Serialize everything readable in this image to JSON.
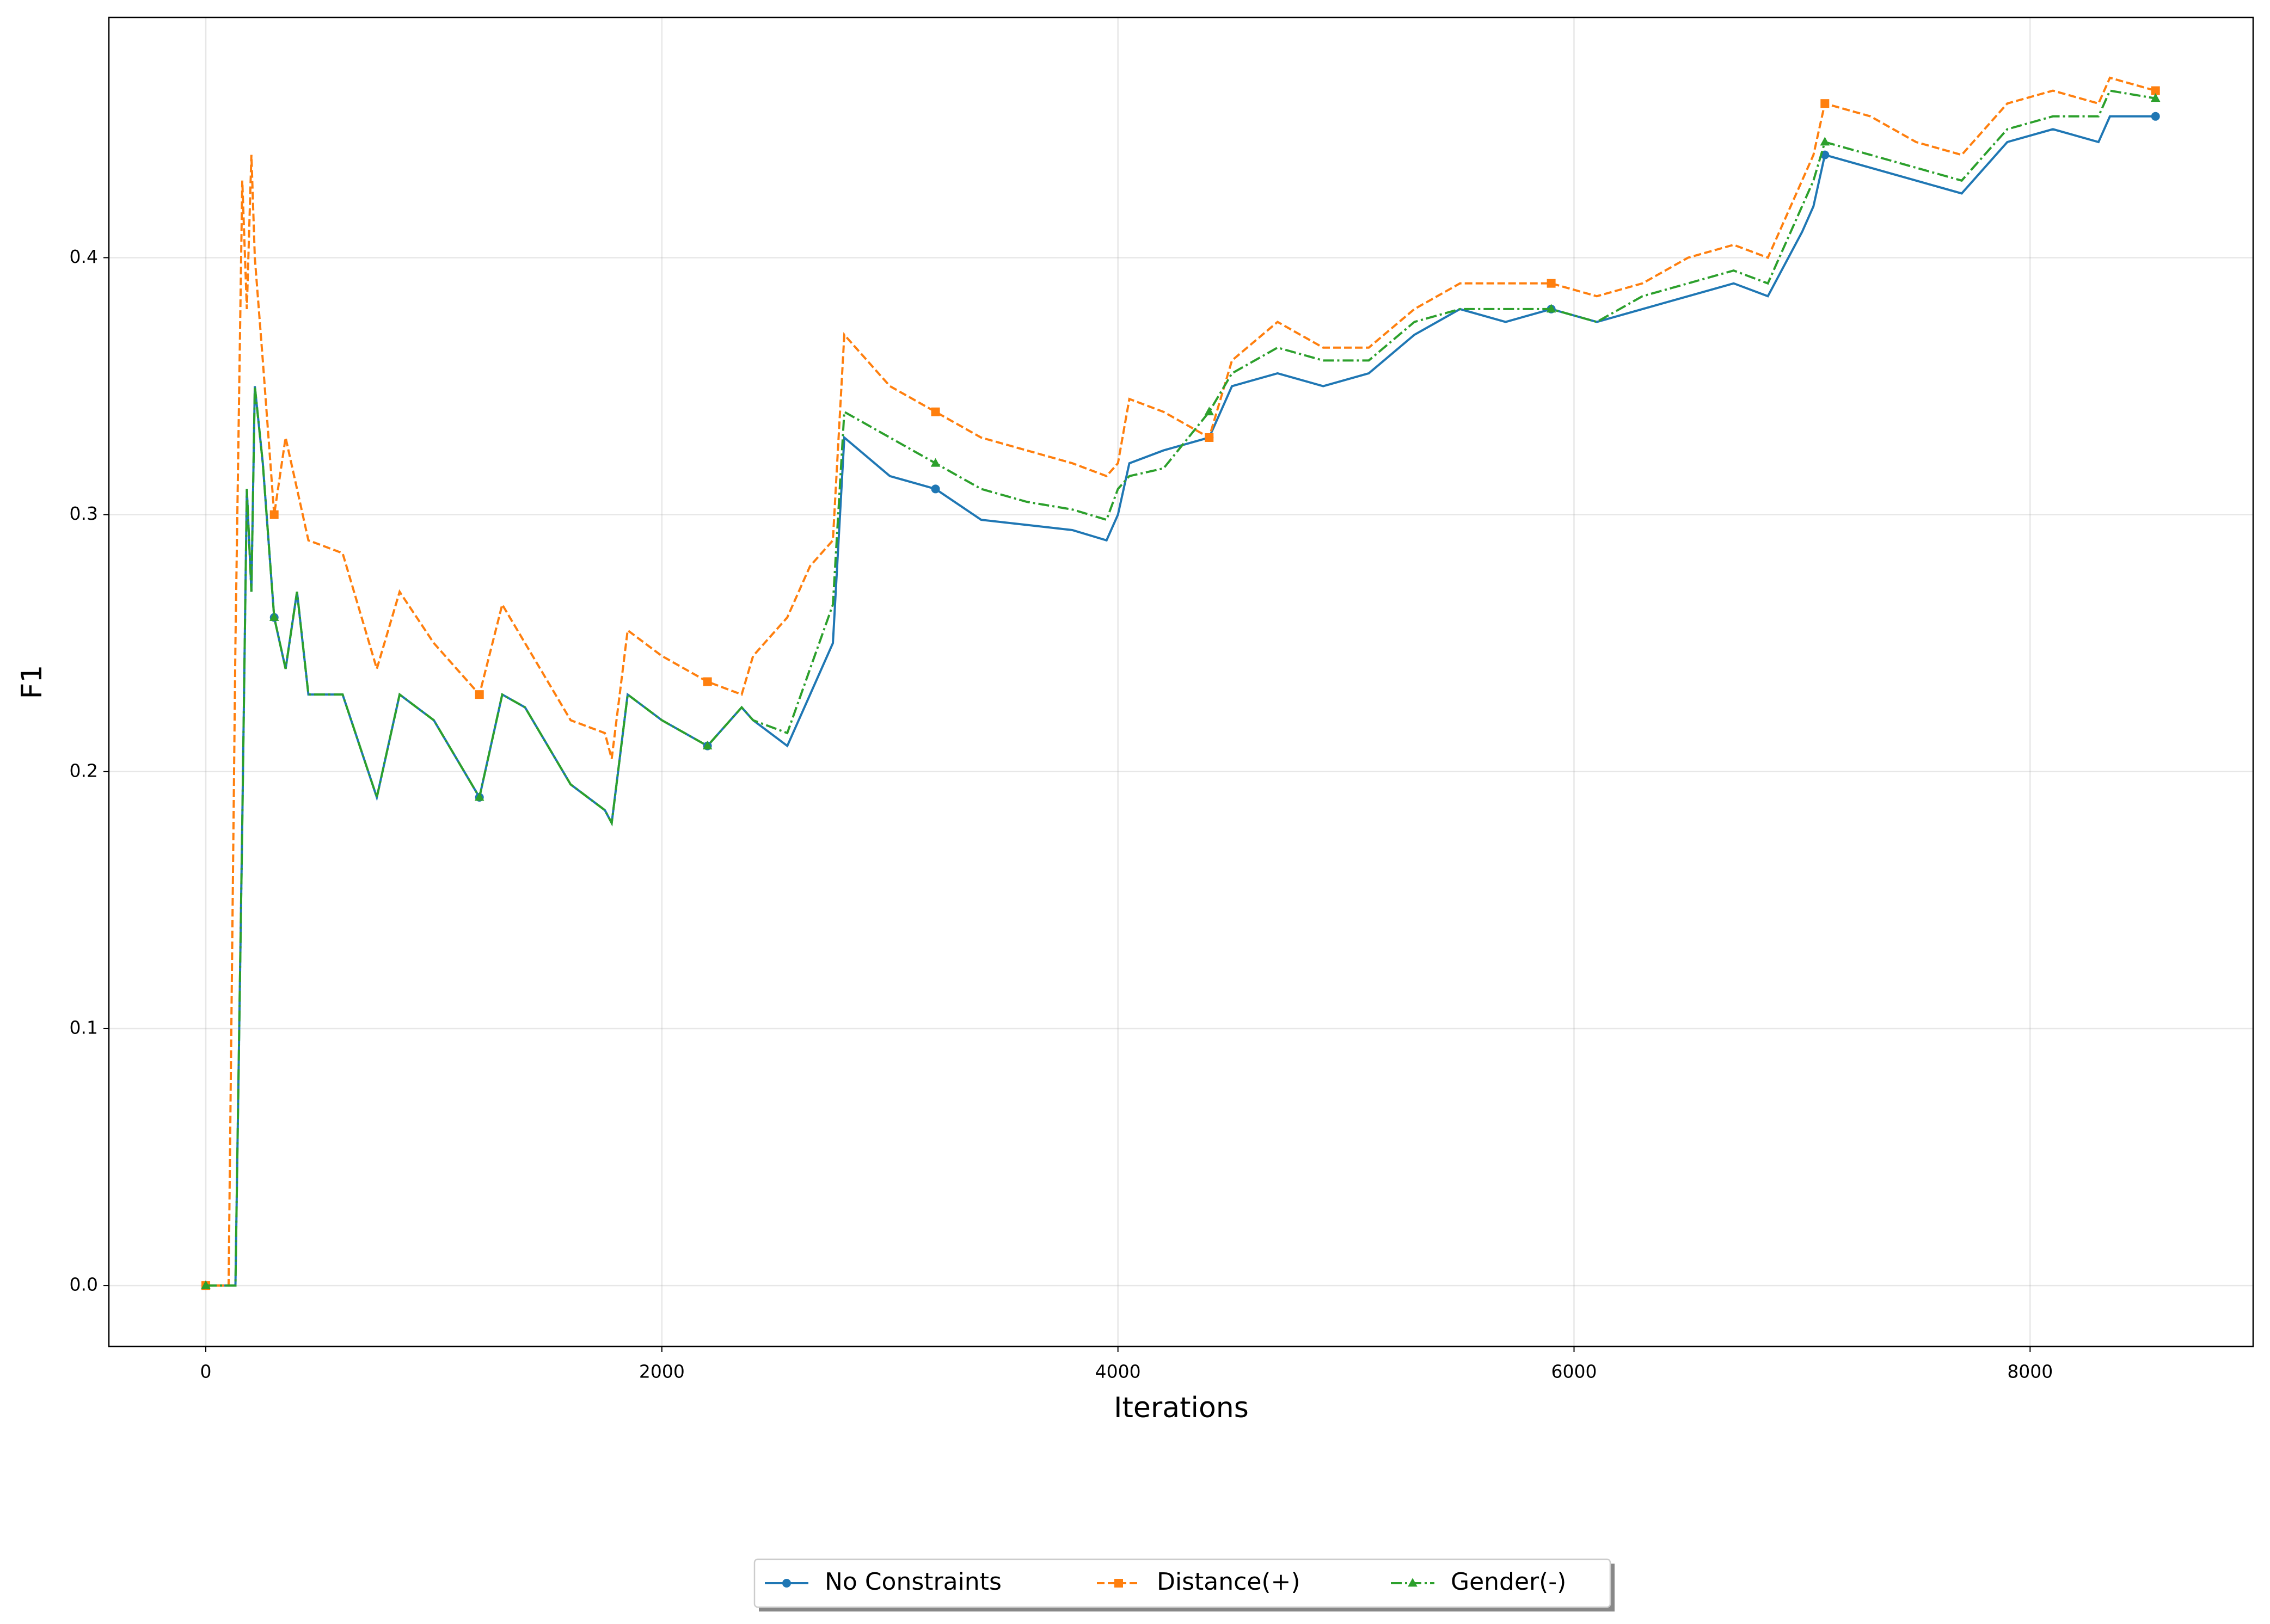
{
  "chart_data": {
    "type": "line",
    "xlabel": "Iterations",
    "ylabel": "F1",
    "x": [
      0,
      100,
      130,
      160,
      180,
      200,
      215,
      250,
      300,
      350,
      400,
      450,
      600,
      750,
      850,
      1000,
      1200,
      1300,
      1400,
      1600,
      1750,
      1780,
      1850,
      2000,
      2200,
      2350,
      2400,
      2550,
      2650,
      2750,
      2800,
      3000,
      3200,
      3400,
      3600,
      3800,
      3950,
      4000,
      4050,
      4200,
      4400,
      4500,
      4700,
      4900,
      5100,
      5300,
      5500,
      5700,
      5900,
      6100,
      6300,
      6500,
      6700,
      6850,
      7000,
      7050,
      7100,
      7300,
      7500,
      7700,
      7900,
      8100,
      8300,
      8350,
      8550
    ],
    "series": [
      {
        "name": "No Constraints",
        "color": "#1f77b4",
        "marker": "circle",
        "dash": "solid",
        "values": [
          0,
          0,
          0,
          0.18,
          0.31,
          0.27,
          0.35,
          0.32,
          0.26,
          0.24,
          0.27,
          0.23,
          0.23,
          0.19,
          0.23,
          0.22,
          0.19,
          0.23,
          0.225,
          0.195,
          0.185,
          0.18,
          0.23,
          0.22,
          0.21,
          0.225,
          0.22,
          0.21,
          0.23,
          0.25,
          0.33,
          0.315,
          0.31,
          0.298,
          0.296,
          0.294,
          0.29,
          0.3,
          0.32,
          0.325,
          0.33,
          0.35,
          0.355,
          0.35,
          0.355,
          0.37,
          0.38,
          0.375,
          0.38,
          0.375,
          0.38,
          0.385,
          0.39,
          0.385,
          0.41,
          0.42,
          0.44,
          0.435,
          0.43,
          0.425,
          0.445,
          0.45,
          0.445,
          0.455,
          0.455
        ]
      },
      {
        "name": "Distance(+)",
        "color": "#ff7f0e",
        "marker": "square",
        "dash": "dashed",
        "values": [
          0,
          0,
          0.25,
          0.43,
          0.38,
          0.44,
          0.4,
          0.36,
          0.3,
          0.33,
          0.31,
          0.29,
          0.285,
          0.24,
          0.27,
          0.25,
          0.23,
          0.265,
          0.25,
          0.22,
          0.215,
          0.205,
          0.255,
          0.245,
          0.235,
          0.23,
          0.245,
          0.26,
          0.28,
          0.29,
          0.37,
          0.35,
          0.34,
          0.33,
          0.325,
          0.32,
          0.315,
          0.32,
          0.345,
          0.34,
          0.33,
          0.36,
          0.375,
          0.365,
          0.365,
          0.38,
          0.39,
          0.39,
          0.39,
          0.385,
          0.39,
          0.4,
          0.405,
          0.4,
          0.43,
          0.44,
          0.46,
          0.455,
          0.445,
          0.44,
          0.46,
          0.465,
          0.46,
          0.47,
          0.465
        ]
      },
      {
        "name": "Gender(-)",
        "color": "#2ca02c",
        "marker": "triangle",
        "dash": "dashdot",
        "values": [
          0,
          0,
          0,
          0.18,
          0.31,
          0.27,
          0.35,
          0.32,
          0.26,
          0.24,
          0.27,
          0.23,
          0.23,
          0.19,
          0.23,
          0.22,
          0.19,
          0.23,
          0.225,
          0.195,
          0.185,
          0.18,
          0.23,
          0.22,
          0.21,
          0.225,
          0.22,
          0.215,
          0.24,
          0.265,
          0.34,
          0.33,
          0.32,
          0.31,
          0.305,
          0.302,
          0.298,
          0.31,
          0.315,
          0.318,
          0.34,
          0.355,
          0.365,
          0.36,
          0.36,
          0.375,
          0.38,
          0.38,
          0.38,
          0.375,
          0.385,
          0.39,
          0.395,
          0.39,
          0.42,
          0.43,
          0.445,
          0.44,
          0.435,
          0.43,
          0.45,
          0.455,
          0.455,
          0.465,
          0.462
        ]
      }
    ],
    "xlim": [
      -425,
      8978
    ],
    "ylim": [
      -0.0237,
      0.4935
    ],
    "xticks": [
      0,
      2000,
      4000,
      6000,
      8000
    ],
    "yticks": [
      {
        "value": 0,
        "label": "0.0"
      },
      0.1,
      0.2,
      0.3,
      0.4
    ],
    "grid": true,
    "legend": "bottom"
  }
}
